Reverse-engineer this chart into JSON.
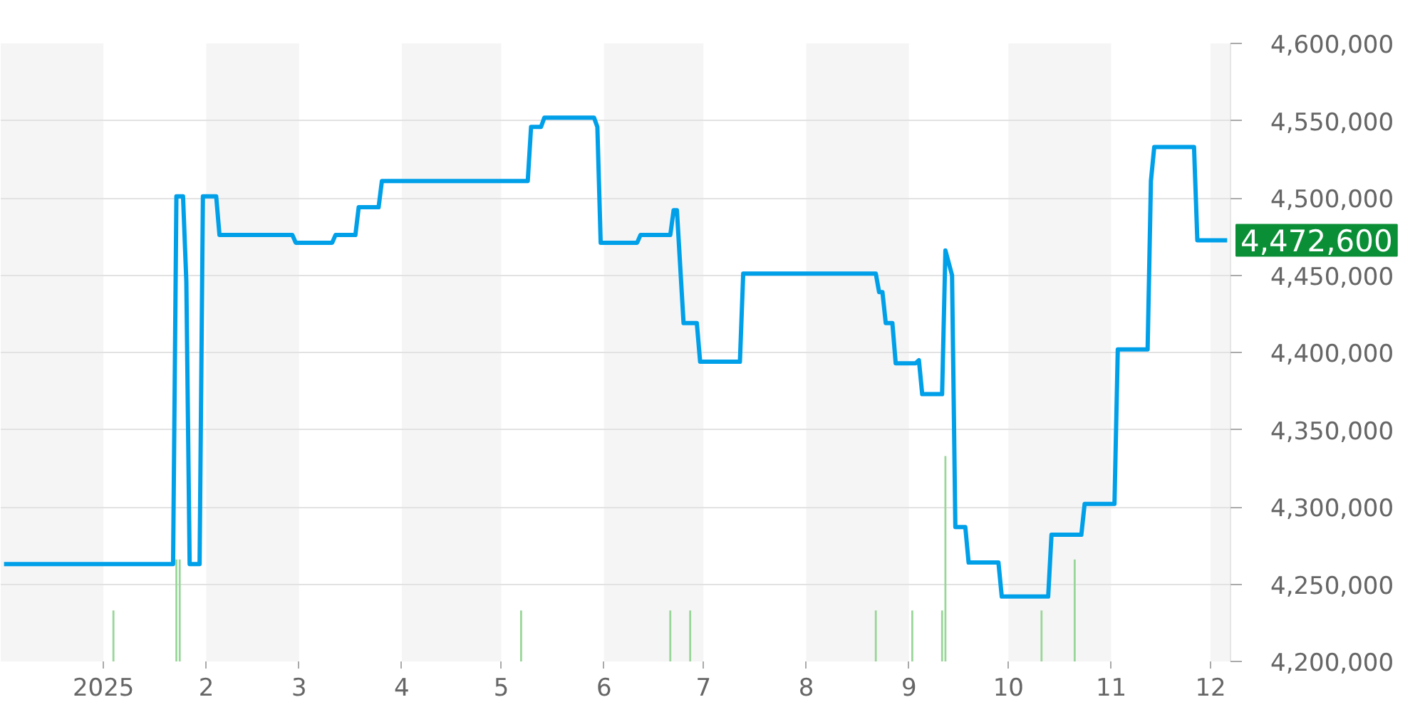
{
  "chart_data": {
    "type": "line",
    "xlim": [
      "2024-12-01",
      "2025-12-07"
    ],
    "xticks": [
      {
        "value": "2025-01-01",
        "label": "2025"
      },
      {
        "value": "2025-02-01",
        "label": "2"
      },
      {
        "value": "2025-03-01",
        "label": "3"
      },
      {
        "value": "2025-04-01",
        "label": "4"
      },
      {
        "value": "2025-05-01",
        "label": "5"
      },
      {
        "value": "2025-06-01",
        "label": "6"
      },
      {
        "value": "2025-07-01",
        "label": "7"
      },
      {
        "value": "2025-08-01",
        "label": "8"
      },
      {
        "value": "2025-09-01",
        "label": "9"
      },
      {
        "value": "2025-10-01",
        "label": "10"
      },
      {
        "value": "2025-11-01",
        "label": "11"
      },
      {
        "value": "2025-12-01",
        "label": "12"
      }
    ],
    "ylim": [
      4200000,
      4600000
    ],
    "yticks": [
      {
        "value": 4200000,
        "label": "4,200,000"
      },
      {
        "value": 4250000,
        "label": "4,250,000"
      },
      {
        "value": 4300000,
        "label": "4,300,000"
      },
      {
        "value": 4350000,
        "label": "4,350,000"
      },
      {
        "value": 4400000,
        "label": "4,400,000"
      },
      {
        "value": 4450000,
        "label": "4,450,000"
      },
      {
        "value": 4500000,
        "label": "4,500,000"
      },
      {
        "value": 4550000,
        "label": "4,550,000"
      },
      {
        "value": 4600000,
        "label": "4,600,000"
      }
    ],
    "grid": "y",
    "bands": [
      {
        "axis": "x",
        "from": "2024-12-01",
        "to": "2025-01-01",
        "color": "#f5f5f5"
      },
      {
        "axis": "x",
        "from": "2025-02-01",
        "to": "2025-03-01",
        "color": "#f5f5f5"
      },
      {
        "axis": "x",
        "from": "2025-04-01",
        "to": "2025-05-01",
        "color": "#f5f5f5"
      },
      {
        "axis": "x",
        "from": "2025-06-01",
        "to": "2025-07-01",
        "color": "#f5f5f5"
      },
      {
        "axis": "x",
        "from": "2025-08-01",
        "to": "2025-09-01",
        "color": "#f5f5f5"
      },
      {
        "axis": "x",
        "from": "2025-10-01",
        "to": "2025-11-01",
        "color": "#f5f5f5"
      },
      {
        "axis": "x",
        "from": "2025-12-01",
        "to": "2025-12-07",
        "color": "#f5f5f5"
      }
    ],
    "series": [
      {
        "type": "bar",
        "color": "#99d699",
        "x": [
          "2025-01-04",
          "2025-01-23",
          "2025-01-24",
          "2025-05-07",
          "2025-06-21",
          "2025-06-27",
          "2025-08-22",
          "2025-09-02",
          "2025-09-11",
          "2025-09-12",
          "2025-10-11",
          "2025-10-21"
        ],
        "values": [
          4233000,
          4266000,
          4266000,
          4233000,
          4233000,
          4233000,
          4233000,
          4233000,
          4233000,
          4333000,
          4233000,
          4266000
        ]
      },
      {
        "color": "#00a0e9",
        "x": [
          "2024-12-02",
          "2025-01-22",
          "2025-01-23",
          "2025-01-25",
          "2025-01-26",
          "2025-01-27",
          "2025-01-30",
          "2025-01-31",
          "2025-02-04",
          "2025-02-05",
          "2025-02-27",
          "2025-02-28",
          "2025-03-11",
          "2025-03-12",
          "2025-03-18",
          "2025-03-19",
          "2025-03-25",
          "2025-03-26",
          "2025-05-09",
          "2025-05-10",
          "2025-05-13",
          "2025-05-14",
          "2025-05-29",
          "2025-05-30",
          "2025-05-31",
          "2025-06-11",
          "2025-06-12",
          "2025-06-21",
          "2025-06-22",
          "2025-06-23",
          "2025-06-25",
          "2025-06-29",
          "2025-06-30",
          "2025-07-12",
          "2025-07-13",
          "2025-08-22",
          "2025-08-23",
          "2025-08-24",
          "2025-08-25",
          "2025-08-27",
          "2025-08-28",
          "2025-09-03",
          "2025-09-04",
          "2025-09-05",
          "2025-09-11",
          "2025-09-12",
          "2025-09-14",
          "2025-09-15",
          "2025-09-18",
          "2025-09-19",
          "2025-09-28",
          "2025-09-29",
          "2025-10-13",
          "2025-10-14",
          "2025-10-23",
          "2025-10-24",
          "2025-11-02",
          "2025-11-03",
          "2025-11-12",
          "2025-11-13",
          "2025-11-14",
          "2025-11-26",
          "2025-11-27",
          "2025-12-06"
        ],
        "values": [
          4263000,
          4263000,
          4501000,
          4501000,
          4446000,
          4263000,
          4263000,
          4501000,
          4501000,
          4476000,
          4476000,
          4471000,
          4471000,
          4476000,
          4476000,
          4494000,
          4494000,
          4511000,
          4511000,
          4546000,
          4546000,
          4552000,
          4552000,
          4546000,
          4471000,
          4471000,
          4476000,
          4476000,
          4492000,
          4492000,
          4419000,
          4419000,
          4394000,
          4394000,
          4451000,
          4451000,
          4439000,
          4439000,
          4419000,
          4419000,
          4393000,
          4393000,
          4395000,
          4373000,
          4373000,
          4466000,
          4450000,
          4287000,
          4287000,
          4264000,
          4264000,
          4242000,
          4242000,
          4282000,
          4282000,
          4302000,
          4302000,
          4402000,
          4402000,
          4511000,
          4533000,
          4533000,
          4472600,
          4472600
        ]
      }
    ],
    "annotations": [
      "4,472,600"
    ]
  }
}
